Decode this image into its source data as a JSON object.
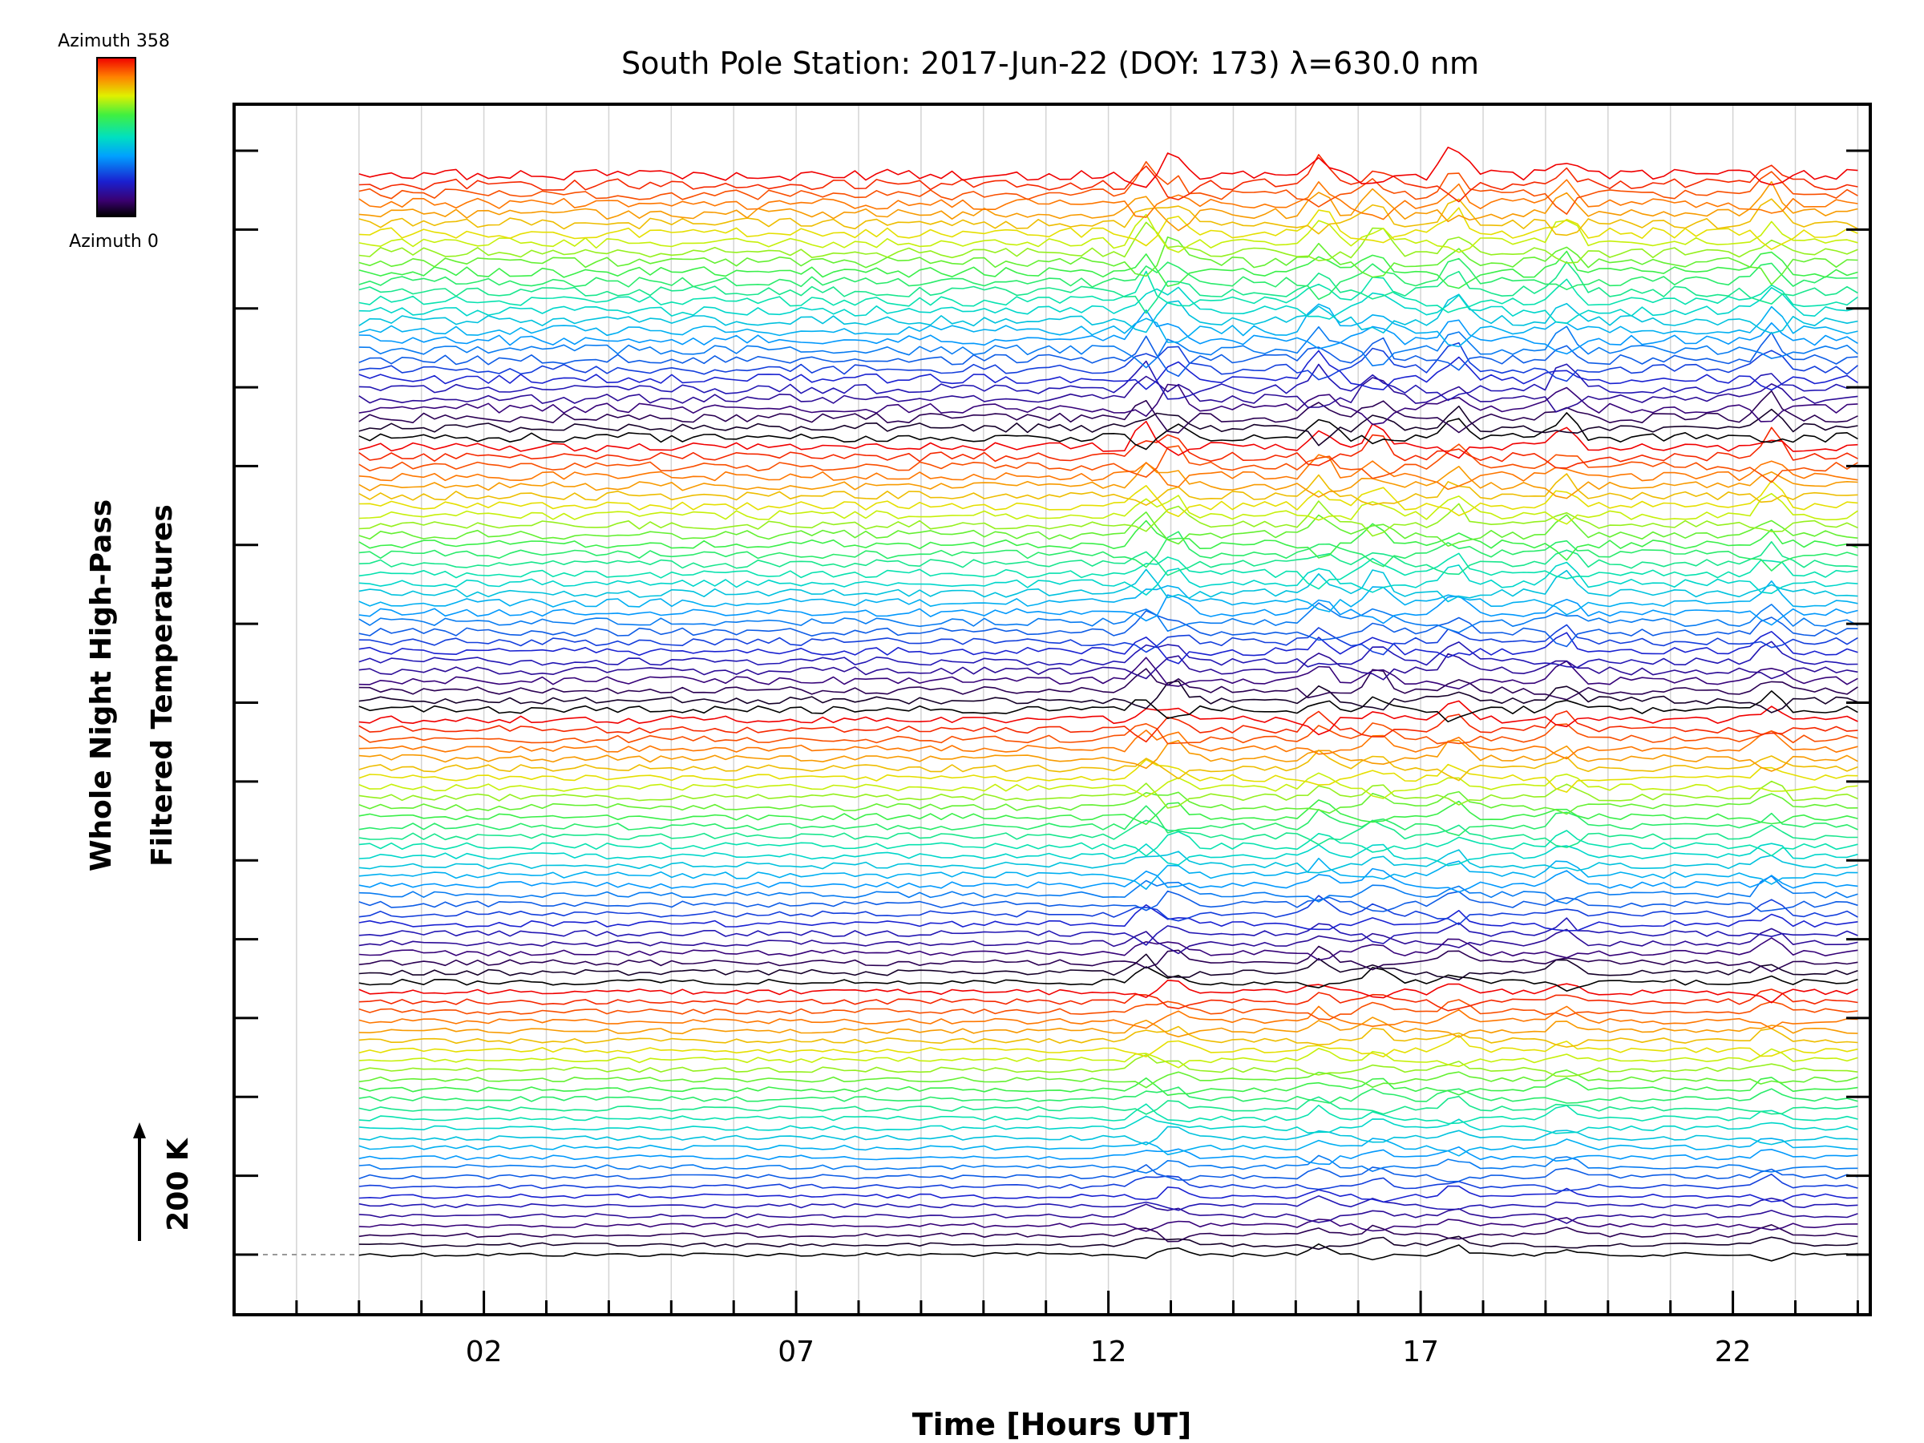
{
  "chart_data": {
    "type": "line",
    "title": "South Pole Station: 2017-Jun-22 (DOY: 173) λ=630.0 nm",
    "xlabel": "Time [Hours UT]",
    "ylabel_lines": [
      "Whole Night High-Pass",
      "Filtered Temperatures"
    ],
    "scale_label": "200 K",
    "xlim": [
      -2.0,
      24.2
    ],
    "x_ticks": [
      2,
      7,
      12,
      17,
      22
    ],
    "x_tick_labels": [
      "02",
      "07",
      "12",
      "17",
      "22"
    ],
    "x_minor_step": 1,
    "data_start_hour": 0.0,
    "data_end_hour": 24.0,
    "series_count": 112,
    "y_offset_levels": 15,
    "grid": true,
    "colorbar": {
      "top_label": "Azimuth  358",
      "bottom_label": "Azimuth  0",
      "min": 0,
      "max": 358,
      "colormap": "rainbow (black-purple-blue-cyan-green-yellow-red)"
    },
    "event_hours": [
      12.6,
      13.05,
      15.4,
      16.3,
      17.55,
      19.3,
      22.6
    ]
  }
}
